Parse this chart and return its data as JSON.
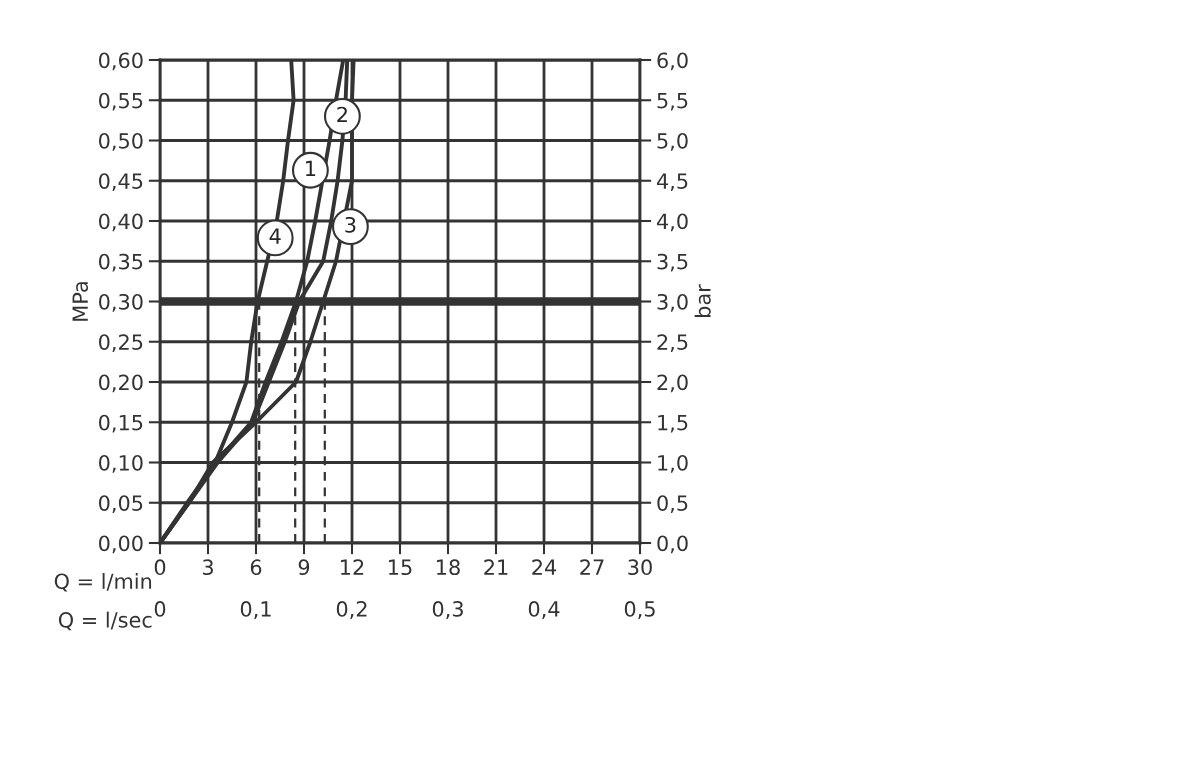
{
  "chart_data": {
    "type": "line",
    "xlabel": "Q = l/min",
    "x2label": "Q = l/sec",
    "ylabel": "MPa",
    "y2label": "bar",
    "xlim": [
      0,
      30
    ],
    "xticks": [
      0,
      3,
      6,
      9,
      12,
      15,
      18,
      21,
      24,
      27,
      30
    ],
    "x2lim": [
      0,
      0.5
    ],
    "x2ticks": [
      {
        "value": 0,
        "label": "0"
      },
      {
        "value": 0.1,
        "label": "0,1"
      },
      {
        "value": 0.2,
        "label": "0,2"
      },
      {
        "value": 0.3,
        "label": "0,3"
      },
      {
        "value": 0.4,
        "label": "0,4"
      },
      {
        "value": 0.5,
        "label": "0,5"
      }
    ],
    "ylim": [
      0,
      0.6
    ],
    "yticks": [
      {
        "value": 0,
        "label": "0,00"
      },
      {
        "value": 0.05,
        "label": "0,05"
      },
      {
        "value": 0.1,
        "label": "0,10"
      },
      {
        "value": 0.15,
        "label": "0,15"
      },
      {
        "value": 0.2,
        "label": "0,20"
      },
      {
        "value": 0.25,
        "label": "0,25"
      },
      {
        "value": 0.3,
        "label": "0,30"
      },
      {
        "value": 0.35,
        "label": "0,35"
      },
      {
        "value": 0.4,
        "label": "0,40"
      },
      {
        "value": 0.45,
        "label": "0,45"
      },
      {
        "value": 0.5,
        "label": "0,50"
      },
      {
        "value": 0.55,
        "label": "0,55"
      },
      {
        "value": 0.6,
        "label": "0,60"
      }
    ],
    "y2lim": [
      0,
      6
    ],
    "y2ticks": [
      {
        "value": 0,
        "label": "0,0"
      },
      {
        "value": 0.5,
        "label": "0,5"
      },
      {
        "value": 1,
        "label": "1,0"
      },
      {
        "value": 1.5,
        "label": "1,5"
      },
      {
        "value": 2,
        "label": "2,0"
      },
      {
        "value": 2.5,
        "label": "2,5"
      },
      {
        "value": 3,
        "label": "3,0"
      },
      {
        "value": 3.5,
        "label": "3,5"
      },
      {
        "value": 4,
        "label": "4,0"
      },
      {
        "value": 4.5,
        "label": "4,5"
      },
      {
        "value": 5,
        "label": "5,0"
      },
      {
        "value": 5.5,
        "label": "5,5"
      },
      {
        "value": 6,
        "label": "6,0"
      }
    ],
    "grid": true,
    "legend": false,
    "marker": "none",
    "series": [
      {
        "color": "#333333",
        "line_style": "solid",
        "x": [
          0,
          1.7,
          3.5,
          5.7,
          6.6,
          7.6,
          8.5,
          9.2,
          9.7,
          10.6,
          11.0,
          11.45
        ],
        "values": [
          0,
          0.05,
          0.1,
          0.15,
          0.2,
          0.25,
          0.3,
          0.35,
          0.4,
          0.5,
          0.55,
          0.6
        ]
      },
      {
        "color": "#333333",
        "line_style": "solid",
        "x": [
          0,
          1.8,
          3.6,
          5.8,
          6.8,
          7.8,
          8.7,
          10.2,
          10.7,
          11.1,
          11.4,
          11.6,
          11.7
        ],
        "values": [
          0,
          0.05,
          0.1,
          0.15,
          0.2,
          0.25,
          0.3,
          0.35,
          0.4,
          0.45,
          0.5,
          0.55,
          0.6
        ]
      },
      {
        "color": "#333333",
        "line_style": "solid",
        "x": [
          0,
          1.8,
          3.3,
          6.0,
          8.5,
          9.4,
          10.2,
          11.0,
          12.0,
          12.0,
          12.0,
          12.1
        ],
        "values": [
          0,
          0.05,
          0.1,
          0.15,
          0.2,
          0.25,
          0.3,
          0.35,
          0.45,
          0.5,
          0.55,
          0.6
        ]
      },
      {
        "color": "#333333",
        "line_style": "solid",
        "x": [
          0,
          1.8,
          3.45,
          4.5,
          5.4,
          5.7,
          6.1,
          6.7,
          7.3,
          7.7,
          8.0,
          8.35,
          8.2
        ],
        "values": [
          0,
          0.05,
          0.1,
          0.15,
          0.2,
          0.25,
          0.3,
          0.35,
          0.4,
          0.45,
          0.5,
          0.55,
          0.6
        ]
      },
      {
        "color": "#333333",
        "line_style": "dashed",
        "x": [
          6.2,
          6.2
        ],
        "values": [
          0,
          0.3
        ]
      },
      {
        "color": "#333333",
        "line_style": "dashed",
        "x": [
          8.45,
          8.45
        ],
        "values": [
          0,
          0.3
        ]
      },
      {
        "color": "#333333",
        "line_style": "dashed",
        "x": [
          10.3,
          10.3
        ],
        "values": [
          0,
          0.3
        ]
      }
    ],
    "ref_lines": [
      {
        "axis": "y",
        "value": 0.3,
        "color": "#333333"
      }
    ],
    "annotations": [
      {
        "text": "1",
        "x": 9.4,
        "y": 0.463
      },
      {
        "text": "2",
        "x": 11.4,
        "y": 0.53
      },
      {
        "text": "3",
        "x": 11.9,
        "y": 0.393
      },
      {
        "text": "4",
        "x": 7.2,
        "y": 0.379
      }
    ]
  }
}
